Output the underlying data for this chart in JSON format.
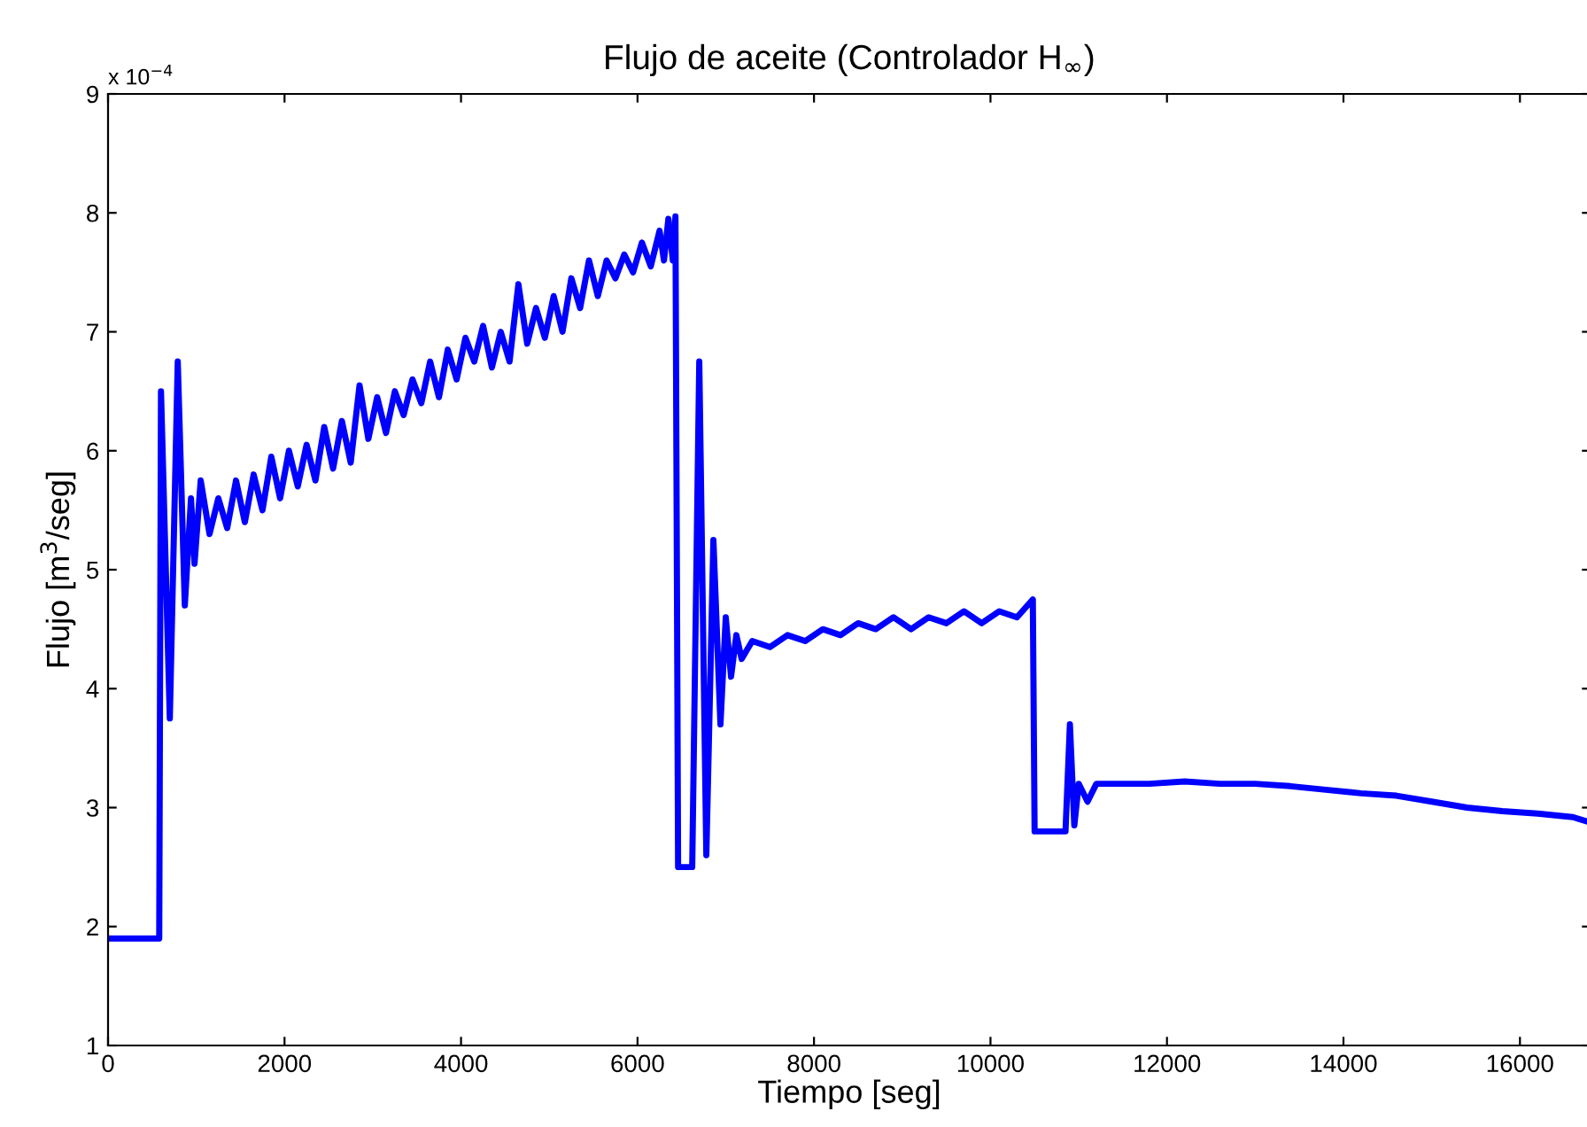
{
  "chart_data": {
    "type": "line",
    "title": "Flujo de aceite (Controlador H$_{∞}$)",
    "xlabel": "Tiempo [seg]",
    "ylabel": "Flujo [m$^{3}$/seg]",
    "annotations": [
      "x 10$^{−4}$"
    ],
    "xlim": [
      0,
      16800
    ],
    "ylim": [
      1,
      9
    ],
    "xticks": [
      0,
      2000,
      4000,
      6000,
      8000,
      10000,
      12000,
      14000,
      16000
    ],
    "yticks": [
      1,
      2,
      3,
      4,
      5,
      6,
      7,
      8,
      9
    ],
    "grid": false,
    "marker": "none",
    "line_style": "solid",
    "series": [
      {
        "color": "#0000ff",
        "x": [
          0,
          580,
          600,
          700,
          790,
          870,
          940,
          980,
          1050,
          1150,
          1250,
          1350,
          1450,
          1550,
          1650,
          1750,
          1850,
          1950,
          2050,
          2150,
          2250,
          2350,
          2450,
          2550,
          2650,
          2750,
          2850,
          2950,
          3050,
          3150,
          3250,
          3350,
          3450,
          3550,
          3650,
          3750,
          3850,
          3950,
          4050,
          4150,
          4250,
          4350,
          4450,
          4550,
          4650,
          4750,
          4850,
          4950,
          5050,
          5150,
          5250,
          5350,
          5450,
          5550,
          5650,
          5750,
          5850,
          5950,
          6050,
          6150,
          6250,
          6300,
          6350,
          6400,
          6430,
          6460,
          6620,
          6700,
          6780,
          6860,
          6940,
          7000,
          7060,
          7120,
          7180,
          7300,
          7500,
          7700,
          7900,
          8100,
          8300,
          8500,
          8700,
          8900,
          9100,
          9300,
          9500,
          9700,
          9900,
          10100,
          10300,
          10480,
          10500,
          10850,
          10900,
          10950,
          11000,
          11100,
          11200,
          11400,
          11800,
          12200,
          12600,
          13000,
          13400,
          13800,
          14200,
          14600,
          15000,
          15400,
          15800,
          16200,
          16600,
          16780
        ],
        "values": [
          1.9,
          1.9,
          6.5,
          3.75,
          6.75,
          4.7,
          5.6,
          5.05,
          5.75,
          5.3,
          5.6,
          5.35,
          5.75,
          5.4,
          5.8,
          5.5,
          5.95,
          5.6,
          6.0,
          5.7,
          6.05,
          5.75,
          6.2,
          5.85,
          6.25,
          5.9,
          6.55,
          6.1,
          6.45,
          6.15,
          6.5,
          6.3,
          6.6,
          6.4,
          6.75,
          6.45,
          6.85,
          6.6,
          6.95,
          6.75,
          7.05,
          6.7,
          7.0,
          6.75,
          7.4,
          6.9,
          7.2,
          6.95,
          7.3,
          7.0,
          7.45,
          7.2,
          7.6,
          7.3,
          7.6,
          7.45,
          7.65,
          7.5,
          7.75,
          7.55,
          7.85,
          7.6,
          7.95,
          7.6,
          7.97,
          2.5,
          2.5,
          6.75,
          2.6,
          5.25,
          3.7,
          4.6,
          4.1,
          4.45,
          4.25,
          4.4,
          4.35,
          4.45,
          4.4,
          4.5,
          4.45,
          4.55,
          4.5,
          4.6,
          4.5,
          4.6,
          4.55,
          4.65,
          4.55,
          4.65,
          4.6,
          4.75,
          2.8,
          2.8,
          3.7,
          2.85,
          3.2,
          3.05,
          3.2,
          3.2,
          3.2,
          3.22,
          3.2,
          3.2,
          3.18,
          3.15,
          3.12,
          3.1,
          3.05,
          3.0,
          2.97,
          2.95,
          2.92,
          2.88
        ]
      }
    ]
  }
}
